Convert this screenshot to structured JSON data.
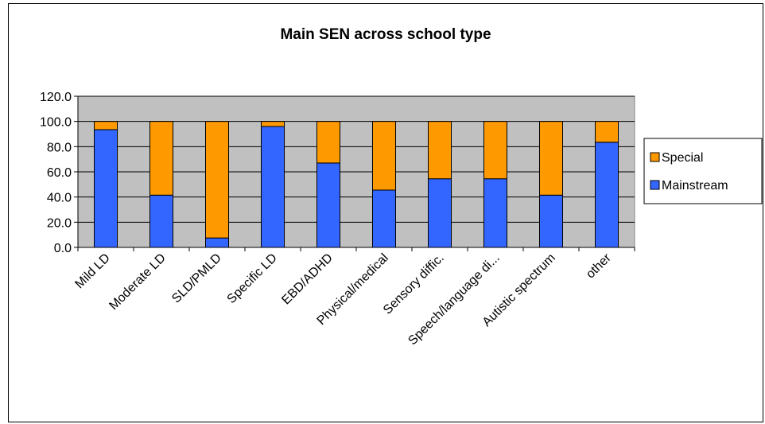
{
  "chart_data": {
    "type": "bar",
    "stacked": true,
    "title": "Main SEN across school type",
    "categories": [
      "Mild  LD",
      "Moderate LD",
      "SLD/PMLD",
      "Specific LD",
      "EBD/ADHD",
      "Physical/medical",
      "Sensory diffic.",
      "Speech/language di...",
      "Autistic spectrum",
      "other"
    ],
    "series": [
      {
        "name": "Mainstream",
        "color": "#3366ff",
        "values": [
          93.5,
          41.5,
          7.5,
          96.0,
          67.0,
          45.5,
          54.5,
          54.5,
          41.5,
          83.5
        ]
      },
      {
        "name": "Special",
        "color": "#ff9900",
        "values": [
          6.5,
          58.5,
          92.5,
          4.0,
          33.0,
          54.5,
          45.5,
          45.5,
          58.5,
          16.5
        ]
      }
    ],
    "y_ticks": [
      "0.0",
      "20.0",
      "40.0",
      "60.0",
      "80.0",
      "100.0",
      "120.0"
    ],
    "ylim": [
      0,
      120
    ],
    "grid": true,
    "plot_background": "#c0c0c0",
    "legend": {
      "position": "right",
      "order": [
        "Special",
        "Mainstream"
      ]
    }
  }
}
